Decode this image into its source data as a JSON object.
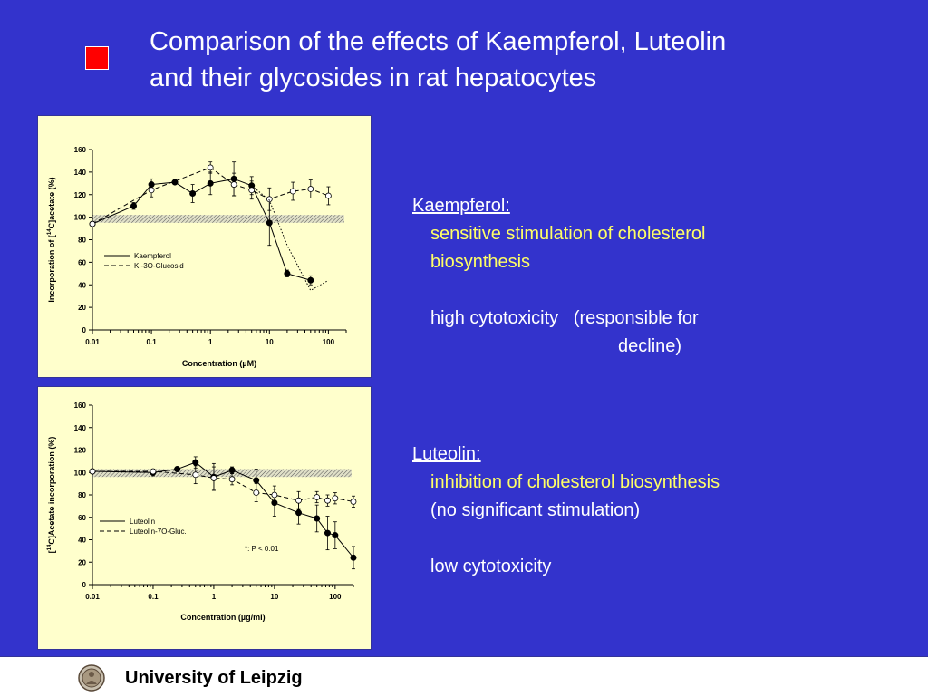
{
  "slide": {
    "title_line1": "Comparison of the effects of Kaempferol, Luteolin",
    "title_line2": "and their glycosides in rat hepatocytes",
    "bullet_color": "#ff0000",
    "background_color": "#3333cc"
  },
  "kaempferol": {
    "heading": "Kaempferol:",
    "line1": "sensitive stimulation of cholesterol",
    "line2": "biosynthesis",
    "line3": "high cytotoxicity",
    "line3b": "(responsible for",
    "line4": "decline)"
  },
  "luteolin": {
    "heading": "Luteolin:",
    "line1": "inhibition of cholesterol biosynthesis",
    "line2": "(no significant stimulation)",
    "line3": "low cytotoxicity"
  },
  "footer": {
    "text": "University of Leipzig",
    "logo_icon": "university-seal-icon"
  },
  "chart_data": [
    {
      "type": "line",
      "x_scale": "log",
      "xlim": [
        0.01,
        200
      ],
      "ylim": [
        0,
        160
      ],
      "xticks": [
        "0.01",
        "0.1",
        "1",
        "10",
        "100"
      ],
      "yticks": [
        "0",
        "20",
        "40",
        "60",
        "80",
        "100",
        "120",
        "140",
        "160"
      ],
      "xlabel": "Concentration (µM)",
      "ylabel_pre": "Incorporation of [",
      "ylabel_sup": "14",
      "ylabel_post": "C]acetate (%)",
      "band": [
        95,
        102
      ],
      "legend": [
        "Kaempferol",
        "K.-3O-Glucosid"
      ],
      "series": [
        {
          "name": "Kaempferol",
          "style": "solid",
          "marker": "filled",
          "x": [
            0.01,
            0.05,
            0.1,
            0.25,
            0.5,
            1,
            2.5,
            5,
            10,
            20,
            50
          ],
          "y": [
            94,
            110,
            129,
            131,
            121,
            130,
            134,
            128,
            95,
            50,
            44
          ],
          "err": [
            2,
            3,
            5,
            2,
            8,
            10,
            15,
            8,
            20,
            3,
            4
          ]
        },
        {
          "name": "K.-3O-Glucosid",
          "style": "dashed",
          "marker": "open",
          "x": [
            0.01,
            0.1,
            1,
            2.5,
            5,
            10,
            25,
            50,
            100
          ],
          "y": [
            94,
            124,
            144,
            129,
            124,
            116,
            123,
            125,
            119
          ],
          "err": [
            2,
            6,
            5,
            10,
            8,
            10,
            8,
            8,
            8
          ]
        },
        {
          "name": "",
          "style": "dotted",
          "marker": "none",
          "x": [
            5,
            10,
            20,
            50,
            100
          ],
          "y": [
            128,
            115,
            75,
            35,
            44
          ],
          "err": [
            0,
            0,
            0,
            0,
            0
          ]
        }
      ]
    },
    {
      "type": "line",
      "x_scale": "log",
      "xlim": [
        0.01,
        200
      ],
      "ylim": [
        0,
        160
      ],
      "xticks": [
        "0.01",
        "0.1",
        "1",
        "10",
        "100"
      ],
      "yticks": [
        "0",
        "20",
        "40",
        "60",
        "80",
        "100",
        "120",
        "140",
        "160"
      ],
      "xlabel": "Concentration (µg/ml)",
      "ylabel_pre": "[",
      "ylabel_sup": "14",
      "ylabel_post": "C]Acetate incorporation (%)",
      "band": [
        96,
        103
      ],
      "legend": [
        "Luteolin",
        "Luteolin-7O-Gluc."
      ],
      "annotation": "*: P < 0.01",
      "series": [
        {
          "name": "Luteolin",
          "style": "solid",
          "marker": "filled",
          "x": [
            0.01,
            0.1,
            0.25,
            0.5,
            1,
            2,
            5,
            10,
            25,
            50,
            75,
            100,
            200
          ],
          "y": [
            101,
            100,
            103,
            109,
            96,
            102,
            93,
            73,
            64,
            59,
            46,
            44,
            24
          ],
          "err": [
            1,
            3,
            2,
            5,
            12,
            3,
            10,
            12,
            10,
            12,
            15,
            12,
            10
          ]
        },
        {
          "name": "Luteolin-7O-Gluc.",
          "style": "dashed",
          "marker": "open",
          "x": [
            0.01,
            0.1,
            0.5,
            1,
            2,
            5,
            10,
            25,
            50,
            75,
            100,
            200
          ],
          "y": [
            101,
            101,
            98,
            95,
            94,
            82,
            80,
            75,
            78,
            75,
            77,
            74
          ],
          "err": [
            1,
            2,
            8,
            10,
            5,
            8,
            8,
            8,
            5,
            5,
            5,
            5
          ]
        }
      ]
    }
  ]
}
